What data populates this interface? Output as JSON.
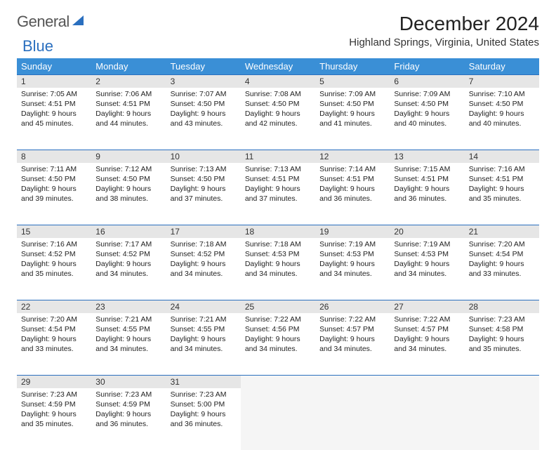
{
  "brand": {
    "part1": "General",
    "part2": "Blue"
  },
  "title": "December 2024",
  "location": "Highland Springs, Virginia, United States",
  "colors": {
    "header_bg": "#3a8fd6",
    "header_text": "#ffffff",
    "daynum_bg": "#e6e6e6",
    "border": "#2a6fbf",
    "brand_blue": "#2a6fbf"
  },
  "day_names": [
    "Sunday",
    "Monday",
    "Tuesday",
    "Wednesday",
    "Thursday",
    "Friday",
    "Saturday"
  ],
  "weeks": [
    [
      {
        "n": "1",
        "sr": "Sunrise: 7:05 AM",
        "ss": "Sunset: 4:51 PM",
        "d1": "Daylight: 9 hours",
        "d2": "and 45 minutes."
      },
      {
        "n": "2",
        "sr": "Sunrise: 7:06 AM",
        "ss": "Sunset: 4:51 PM",
        "d1": "Daylight: 9 hours",
        "d2": "and 44 minutes."
      },
      {
        "n": "3",
        "sr": "Sunrise: 7:07 AM",
        "ss": "Sunset: 4:50 PM",
        "d1": "Daylight: 9 hours",
        "d2": "and 43 minutes."
      },
      {
        "n": "4",
        "sr": "Sunrise: 7:08 AM",
        "ss": "Sunset: 4:50 PM",
        "d1": "Daylight: 9 hours",
        "d2": "and 42 minutes."
      },
      {
        "n": "5",
        "sr": "Sunrise: 7:09 AM",
        "ss": "Sunset: 4:50 PM",
        "d1": "Daylight: 9 hours",
        "d2": "and 41 minutes."
      },
      {
        "n": "6",
        "sr": "Sunrise: 7:09 AM",
        "ss": "Sunset: 4:50 PM",
        "d1": "Daylight: 9 hours",
        "d2": "and 40 minutes."
      },
      {
        "n": "7",
        "sr": "Sunrise: 7:10 AM",
        "ss": "Sunset: 4:50 PM",
        "d1": "Daylight: 9 hours",
        "d2": "and 40 minutes."
      }
    ],
    [
      {
        "n": "8",
        "sr": "Sunrise: 7:11 AM",
        "ss": "Sunset: 4:50 PM",
        "d1": "Daylight: 9 hours",
        "d2": "and 39 minutes."
      },
      {
        "n": "9",
        "sr": "Sunrise: 7:12 AM",
        "ss": "Sunset: 4:50 PM",
        "d1": "Daylight: 9 hours",
        "d2": "and 38 minutes."
      },
      {
        "n": "10",
        "sr": "Sunrise: 7:13 AM",
        "ss": "Sunset: 4:50 PM",
        "d1": "Daylight: 9 hours",
        "d2": "and 37 minutes."
      },
      {
        "n": "11",
        "sr": "Sunrise: 7:13 AM",
        "ss": "Sunset: 4:51 PM",
        "d1": "Daylight: 9 hours",
        "d2": "and 37 minutes."
      },
      {
        "n": "12",
        "sr": "Sunrise: 7:14 AM",
        "ss": "Sunset: 4:51 PM",
        "d1": "Daylight: 9 hours",
        "d2": "and 36 minutes."
      },
      {
        "n": "13",
        "sr": "Sunrise: 7:15 AM",
        "ss": "Sunset: 4:51 PM",
        "d1": "Daylight: 9 hours",
        "d2": "and 36 minutes."
      },
      {
        "n": "14",
        "sr": "Sunrise: 7:16 AM",
        "ss": "Sunset: 4:51 PM",
        "d1": "Daylight: 9 hours",
        "d2": "and 35 minutes."
      }
    ],
    [
      {
        "n": "15",
        "sr": "Sunrise: 7:16 AM",
        "ss": "Sunset: 4:52 PM",
        "d1": "Daylight: 9 hours",
        "d2": "and 35 minutes."
      },
      {
        "n": "16",
        "sr": "Sunrise: 7:17 AM",
        "ss": "Sunset: 4:52 PM",
        "d1": "Daylight: 9 hours",
        "d2": "and 34 minutes."
      },
      {
        "n": "17",
        "sr": "Sunrise: 7:18 AM",
        "ss": "Sunset: 4:52 PM",
        "d1": "Daylight: 9 hours",
        "d2": "and 34 minutes."
      },
      {
        "n": "18",
        "sr": "Sunrise: 7:18 AM",
        "ss": "Sunset: 4:53 PM",
        "d1": "Daylight: 9 hours",
        "d2": "and 34 minutes."
      },
      {
        "n": "19",
        "sr": "Sunrise: 7:19 AM",
        "ss": "Sunset: 4:53 PM",
        "d1": "Daylight: 9 hours",
        "d2": "and 34 minutes."
      },
      {
        "n": "20",
        "sr": "Sunrise: 7:19 AM",
        "ss": "Sunset: 4:53 PM",
        "d1": "Daylight: 9 hours",
        "d2": "and 34 minutes."
      },
      {
        "n": "21",
        "sr": "Sunrise: 7:20 AM",
        "ss": "Sunset: 4:54 PM",
        "d1": "Daylight: 9 hours",
        "d2": "and 33 minutes."
      }
    ],
    [
      {
        "n": "22",
        "sr": "Sunrise: 7:20 AM",
        "ss": "Sunset: 4:54 PM",
        "d1": "Daylight: 9 hours",
        "d2": "and 33 minutes."
      },
      {
        "n": "23",
        "sr": "Sunrise: 7:21 AM",
        "ss": "Sunset: 4:55 PM",
        "d1": "Daylight: 9 hours",
        "d2": "and 34 minutes."
      },
      {
        "n": "24",
        "sr": "Sunrise: 7:21 AM",
        "ss": "Sunset: 4:55 PM",
        "d1": "Daylight: 9 hours",
        "d2": "and 34 minutes."
      },
      {
        "n": "25",
        "sr": "Sunrise: 7:22 AM",
        "ss": "Sunset: 4:56 PM",
        "d1": "Daylight: 9 hours",
        "d2": "and 34 minutes."
      },
      {
        "n": "26",
        "sr": "Sunrise: 7:22 AM",
        "ss": "Sunset: 4:57 PM",
        "d1": "Daylight: 9 hours",
        "d2": "and 34 minutes."
      },
      {
        "n": "27",
        "sr": "Sunrise: 7:22 AM",
        "ss": "Sunset: 4:57 PM",
        "d1": "Daylight: 9 hours",
        "d2": "and 34 minutes."
      },
      {
        "n": "28",
        "sr": "Sunrise: 7:23 AM",
        "ss": "Sunset: 4:58 PM",
        "d1": "Daylight: 9 hours",
        "d2": "and 35 minutes."
      }
    ],
    [
      {
        "n": "29",
        "sr": "Sunrise: 7:23 AM",
        "ss": "Sunset: 4:59 PM",
        "d1": "Daylight: 9 hours",
        "d2": "and 35 minutes."
      },
      {
        "n": "30",
        "sr": "Sunrise: 7:23 AM",
        "ss": "Sunset: 4:59 PM",
        "d1": "Daylight: 9 hours",
        "d2": "and 36 minutes."
      },
      {
        "n": "31",
        "sr": "Sunrise: 7:23 AM",
        "ss": "Sunset: 5:00 PM",
        "d1": "Daylight: 9 hours",
        "d2": "and 36 minutes."
      },
      null,
      null,
      null,
      null
    ]
  ]
}
